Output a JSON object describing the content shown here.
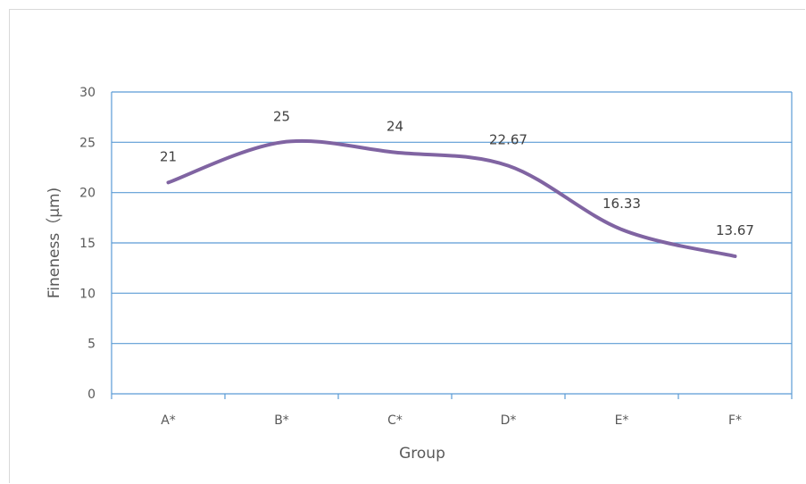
{
  "chart_data": {
    "type": "line",
    "smooth": true,
    "categories": [
      "A*",
      "B*",
      "C*",
      "D*",
      "E*",
      "F*"
    ],
    "series": [
      {
        "values": [
          21,
          25,
          24,
          22.67,
          16.33,
          13.67
        ],
        "color": "#8064a2"
      }
    ],
    "data_labels": [
      "21",
      "25",
      "24",
      "22.67",
      "16.33",
      "13.67"
    ],
    "xlabel": "Group",
    "ylabel": "Fineness（μm)",
    "ylim": [
      0,
      30
    ],
    "yticks": [
      0,
      5,
      10,
      15,
      20,
      25,
      30
    ],
    "grid": true,
    "grid_color": "#5b9bd5",
    "axis_color": "#5b9bd5"
  }
}
